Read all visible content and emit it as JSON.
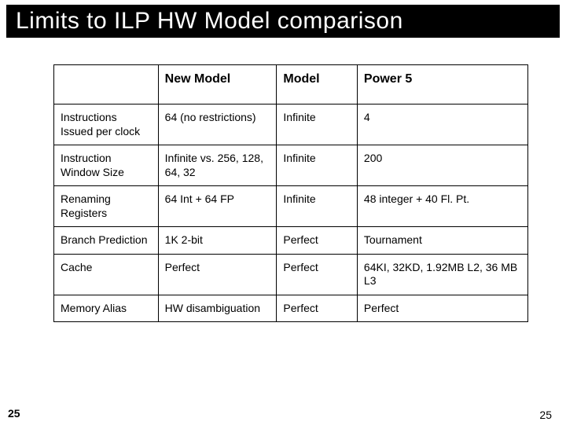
{
  "title": "Limits to ILP HW Model comparison",
  "columns": [
    "",
    "New Model",
    "Model",
    "Power 5"
  ],
  "rows": [
    [
      "Instructions Issued per clock",
      "64 (no restrictions)",
      "Infinite",
      "4"
    ],
    [
      "Instruction Window Size",
      "Infinite vs. 256, 128, 64, 32",
      "Infinite",
      "200"
    ],
    [
      "Renaming Registers",
      "64 Int + 64 FP",
      "Infinite",
      "48 integer + 40 Fl. Pt."
    ],
    [
      "Branch Prediction",
      "1K 2-bit",
      "Perfect",
      "Tournament"
    ],
    [
      "Cache",
      "Perfect",
      "Perfect",
      "64KI, 32KD, 1.92MB L2, 36 MB L3"
    ],
    [
      "Memory Alias",
      "HW disambiguation",
      "Perfect",
      "Perfect"
    ]
  ],
  "page_left": "25",
  "page_right": "25"
}
